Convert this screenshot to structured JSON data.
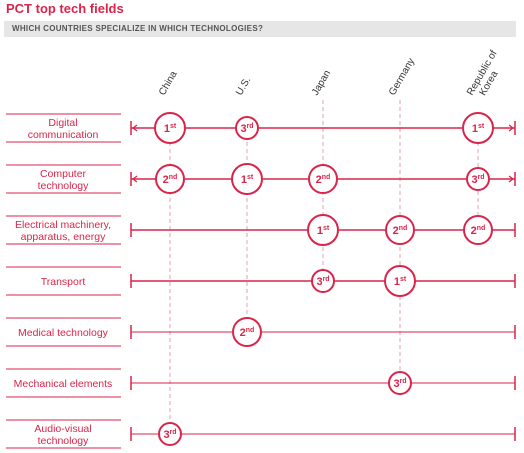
{
  "title": "PCT top tech fields",
  "subtitle": "WHICH COUNTRIES SPECIALIZE IN WHICH TECHNOLOGIES?",
  "colors": {
    "accent": "#d9254a",
    "grid": "#e6a0b2",
    "text": "#333333"
  },
  "chart_data": {
    "type": "table",
    "countries": [
      "China",
      "U.S.",
      "Japan",
      "Germany",
      "Republic of Korea"
    ],
    "fields": [
      {
        "label": [
          "Digital",
          "communication"
        ],
        "ranks": [
          {
            "country": "China",
            "num": "1",
            "suf": "st"
          },
          {
            "country": "U.S.",
            "num": "3",
            "suf": "rd"
          },
          {
            "country": "Republic of Korea",
            "num": "1",
            "suf": "st"
          }
        ]
      },
      {
        "label": [
          "Computer",
          "technology"
        ],
        "ranks": [
          {
            "country": "China",
            "num": "2",
            "suf": "nd"
          },
          {
            "country": "U.S.",
            "num": "1",
            "suf": "st"
          },
          {
            "country": "Japan",
            "num": "2",
            "suf": "nd"
          },
          {
            "country": "Republic of Korea",
            "num": "3",
            "suf": "rd"
          }
        ]
      },
      {
        "label": [
          "Electrical machinery,",
          "apparatus, energy"
        ],
        "ranks": [
          {
            "country": "Japan",
            "num": "1",
            "suf": "st"
          },
          {
            "country": "Germany",
            "num": "2",
            "suf": "nd"
          },
          {
            "country": "Republic of Korea",
            "num": "2",
            "suf": "nd"
          }
        ]
      },
      {
        "label": [
          "Transport"
        ],
        "ranks": [
          {
            "country": "Japan",
            "num": "3",
            "suf": "rd"
          },
          {
            "country": "Germany",
            "num": "1",
            "suf": "st"
          }
        ]
      },
      {
        "label": [
          "Medical technology"
        ],
        "ranks": [
          {
            "country": "U.S.",
            "num": "2",
            "suf": "nd"
          }
        ]
      },
      {
        "label": [
          "Mechanical elements"
        ],
        "ranks": [
          {
            "country": "Germany",
            "num": "3",
            "suf": "rd"
          }
        ]
      },
      {
        "label": [
          "Audio-visual",
          "technology"
        ],
        "ranks": [
          {
            "country": "China",
            "num": "3",
            "suf": "rd"
          }
        ]
      }
    ]
  }
}
